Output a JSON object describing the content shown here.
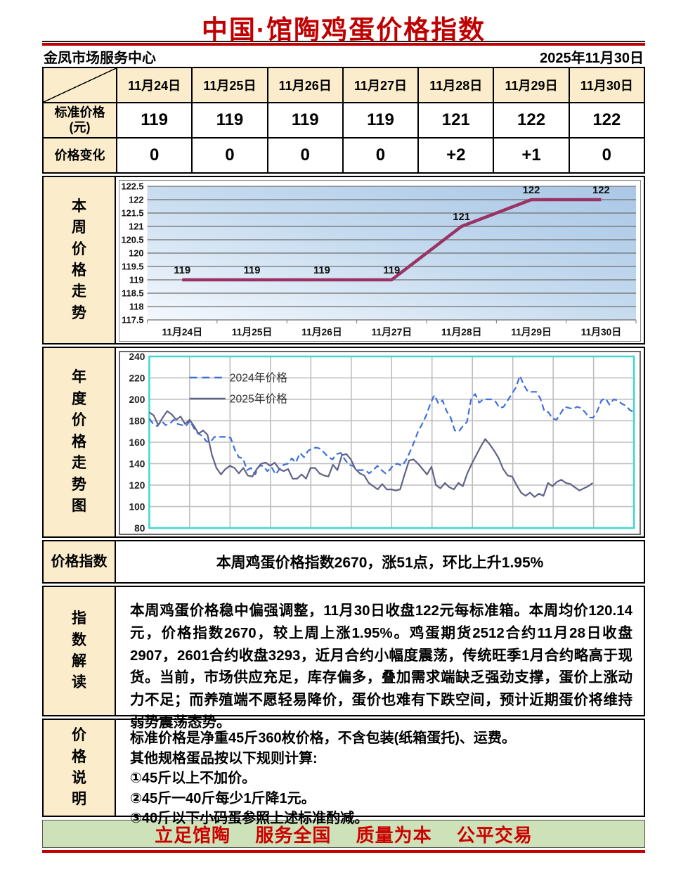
{
  "page": {
    "title": "中国·馆陶鸡蛋价格指数",
    "org": "金凤市场服务中心",
    "date": "2025年11月30日"
  },
  "colors": {
    "title_red": "#C00000",
    "footer_green": "#CDE2B8",
    "label_beige": "#FBEDCB",
    "weekly_line_plum": "#993366",
    "series_2024_blue": "#3D6EDE",
    "series_2025_slate": "#5F6288",
    "annual_border_cyan": "#3FD6CE",
    "gridline_gray": "#909090"
  },
  "price_table": {
    "dates": [
      "11月24日",
      "11月25日",
      "11月26日",
      "11月27日",
      "11月28日",
      "11月29日",
      "11月30日"
    ],
    "rows": [
      {
        "label": "标准价格\n(元)",
        "values": [
          "119",
          "119",
          "119",
          "119",
          "121",
          "122",
          "122"
        ]
      },
      {
        "label": "价格变化",
        "values": [
          "0",
          "0",
          "0",
          "0",
          "+2",
          "+1",
          "0"
        ]
      }
    ]
  },
  "weekly_section": {
    "label": "本周价格走势"
  },
  "annual_section": {
    "label": "年度价格走势图"
  },
  "index_row": {
    "label": "价格指数",
    "text": "本周鸡蛋价格指数2670，涨51点，环比上升1.95%"
  },
  "interpretation": {
    "label": "指数解读",
    "text": "本周鸡蛋价格稳中偏强调整，11月30日收盘122元每标准箱。本周均价120.14元，价格指数2670，较上周上涨1.95%。鸡蛋期货2512合约11月28日收盘2907，2601合约收盘3293，近月合约小幅度震荡，传统旺季1月合约略高于现货。当前，市场供应充足，库存偏多，叠加需求端缺乏强劲支撑，蛋价上涨动力不足；而养殖端不愿轻易降价，蛋价也难有下跌空间，预计近期蛋价将维持弱势震荡态势。"
  },
  "price_notes": {
    "label": "价格说明",
    "lines": [
      "标准价格是净重45斤360枚价格，不含包装(纸箱蛋托)、运费。",
      "其他规格蛋品按以下规则计算:",
      "①45斤以上不加价。",
      "②45斤一40斤每少1斤降1元。",
      "③40斤以下小码蛋参照上述标准酌减。"
    ]
  },
  "footer": {
    "text": "立足馆陶　 服务全国　 质量为本　 公平交易"
  },
  "chart_data": [
    {
      "type": "line",
      "title": "本周价格走势",
      "categories": [
        "11月24日",
        "11月25日",
        "11月26日",
        "11月27日",
        "11月28日",
        "11月29日",
        "11月30日"
      ],
      "values": [
        119,
        119,
        119,
        119,
        121,
        122,
        122
      ],
      "data_labels": [
        "119",
        "119",
        "119",
        "119",
        "121",
        "122",
        "122"
      ],
      "ylim": [
        117.5,
        122.5
      ],
      "ytick_step": 0.5,
      "grid": "horizontal",
      "line_color": "#993366",
      "plot_bg_gradient": [
        "#f4f8fd",
        "#c3d9ee",
        "#aac7e6"
      ]
    },
    {
      "type": "line",
      "title": "年度价格走势图",
      "ylim": [
        80,
        240
      ],
      "ytick_step": 20,
      "grid": "both",
      "x_columns": 12,
      "legend_position": "top-left",
      "series": [
        {
          "name": "2024年价格",
          "style": "dashed",
          "color": "#3D6EDE",
          "x_span": [
            0,
            1
          ],
          "values": [
            182,
            177,
            175,
            180,
            176,
            177,
            181,
            177,
            176,
            175,
            180,
            173,
            168,
            166,
            161,
            160,
            165,
            165,
            165,
            165,
            164,
            153,
            146,
            145,
            134,
            136,
            130,
            138,
            138,
            133,
            137,
            130,
            135,
            139,
            140,
            145,
            141,
            150,
            146,
            152,
            154,
            155,
            154,
            150,
            146,
            144,
            149,
            150,
            144,
            139,
            138,
            134,
            134,
            134,
            131,
            134,
            138,
            134,
            131,
            134,
            139,
            140,
            138,
            143,
            151,
            160,
            170,
            177,
            185,
            196,
            204,
            196,
            199,
            189,
            183,
            171,
            170,
            175,
            179,
            200,
            205,
            197,
            200,
            200,
            200,
            198,
            192,
            193,
            199,
            205,
            211,
            222,
            213,
            207,
            207,
            207,
            201,
            189,
            188,
            182,
            181,
            187,
            193,
            192,
            191,
            193,
            192,
            188,
            183,
            183,
            189,
            199,
            201,
            195,
            200,
            199,
            196,
            194,
            190,
            188
          ]
        },
        {
          "name": "2025年价格",
          "style": "solid",
          "color": "#5F6288",
          "x_span": [
            0,
            0.915
          ],
          "values": [
            188,
            185,
            176,
            183,
            189,
            186,
            181,
            184,
            177,
            181,
            175,
            168,
            171,
            167,
            148,
            136,
            130,
            135,
            138,
            136,
            131,
            136,
            129,
            128,
            135,
            140,
            141,
            138,
            141,
            135,
            133,
            135,
            126,
            126,
            130,
            126,
            136,
            136,
            131,
            129,
            128,
            139,
            134,
            148,
            149,
            144,
            135,
            131,
            129,
            122,
            119,
            116,
            121,
            116,
            116,
            115,
            116,
            130,
            143,
            144,
            140,
            135,
            130,
            137,
            120,
            117,
            122,
            118,
            116,
            122,
            119,
            131,
            140,
            148,
            156,
            163,
            158,
            152,
            145,
            135,
            129,
            128,
            120,
            113,
            110,
            113,
            109,
            112,
            110,
            122,
            119,
            123,
            125,
            122,
            121,
            118,
            115,
            117,
            119,
            122
          ]
        }
      ]
    }
  ]
}
